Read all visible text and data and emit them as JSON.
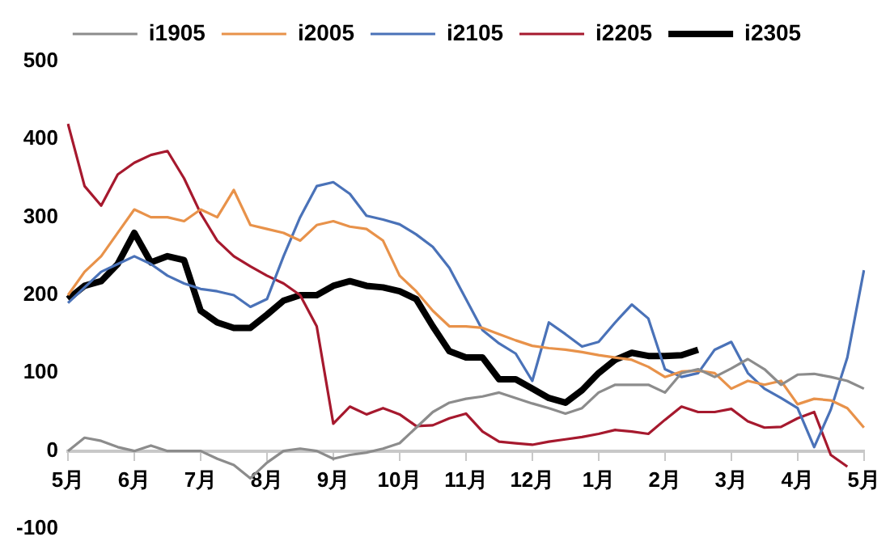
{
  "chart_data": {
    "type": "line",
    "legend": "top",
    "marker": "none",
    "ylim": [
      -100,
      500
    ],
    "yticks": [
      -100,
      0,
      100,
      200,
      300,
      400,
      500
    ],
    "categories": [
      "5月",
      null,
      null,
      null,
      "6月",
      null,
      null,
      null,
      "7月",
      null,
      null,
      null,
      "8月",
      null,
      null,
      null,
      "9月",
      null,
      null,
      null,
      "10月",
      null,
      null,
      null,
      "11月",
      null,
      null,
      null,
      "12月",
      null,
      null,
      null,
      "1月",
      null,
      null,
      null,
      "2月",
      null,
      null,
      null,
      "3月",
      null,
      null,
      null,
      "4月",
      null,
      null,
      null,
      "5月"
    ],
    "series": [
      {
        "name": "i1905",
        "color": "#8c8c8c",
        "values": [
          0,
          17,
          13,
          5,
          0,
          7,
          0,
          0,
          0,
          -10,
          -18,
          -35,
          -15,
          0,
          3,
          0,
          -10,
          -5,
          -2,
          3,
          10,
          30,
          50,
          62,
          67,
          70,
          75,
          68,
          61,
          55,
          48,
          55,
          75,
          85,
          85,
          85,
          75,
          100,
          105,
          95,
          106,
          118,
          105,
          85,
          98,
          99,
          95,
          90,
          80
        ]
      },
      {
        "name": "i2005",
        "color": "#e8924a",
        "values": [
          200,
          230,
          250,
          280,
          310,
          300,
          300,
          295,
          310,
          300,
          335,
          290,
          285,
          280,
          270,
          290,
          295,
          288,
          285,
          270,
          225,
          205,
          180,
          160,
          160,
          158,
          150,
          142,
          135,
          132,
          130,
          127,
          123,
          120,
          117,
          108,
          95,
          102,
          103,
          100,
          80,
          90,
          85,
          90,
          60,
          67,
          65,
          55,
          30
        ]
      },
      {
        "name": "i2105",
        "color": "#4a72b8",
        "values": [
          190,
          210,
          230,
          240,
          250,
          240,
          225,
          215,
          208,
          205,
          200,
          185,
          195,
          250,
          300,
          340,
          345,
          330,
          302,
          297,
          291,
          278,
          262,
          235,
          195,
          155,
          138,
          125,
          90,
          165,
          150,
          134,
          140,
          165,
          188,
          170,
          105,
          95,
          100,
          130,
          140,
          100,
          80,
          68,
          55,
          5,
          53,
          120,
          232
        ]
      },
      {
        "name": "i2205",
        "color": "#a6192e",
        "values": [
          420,
          340,
          315,
          355,
          370,
          380,
          385,
          350,
          305,
          270,
          250,
          237,
          225,
          215,
          200,
          160,
          35,
          57,
          47,
          55,
          47,
          32,
          33,
          42,
          48,
          25,
          12,
          10,
          8,
          12,
          15,
          18,
          22,
          27,
          25,
          22,
          40,
          57,
          50,
          50,
          54,
          38,
          30,
          31,
          42,
          50,
          -5,
          -20,
          null
        ]
      },
      {
        "name": "i2305",
        "color": "#000000",
        "values": [
          195,
          212,
          218,
          240,
          280,
          242,
          250,
          245,
          180,
          165,
          158,
          158,
          175,
          193,
          200,
          200,
          212,
          218,
          212,
          210,
          205,
          195,
          160,
          128,
          120,
          120,
          92,
          92,
          80,
          68,
          62,
          78,
          100,
          117,
          126,
          122,
          122,
          123,
          130,
          null,
          null,
          null,
          null,
          null,
          null,
          null,
          null,
          null,
          null
        ]
      }
    ]
  }
}
